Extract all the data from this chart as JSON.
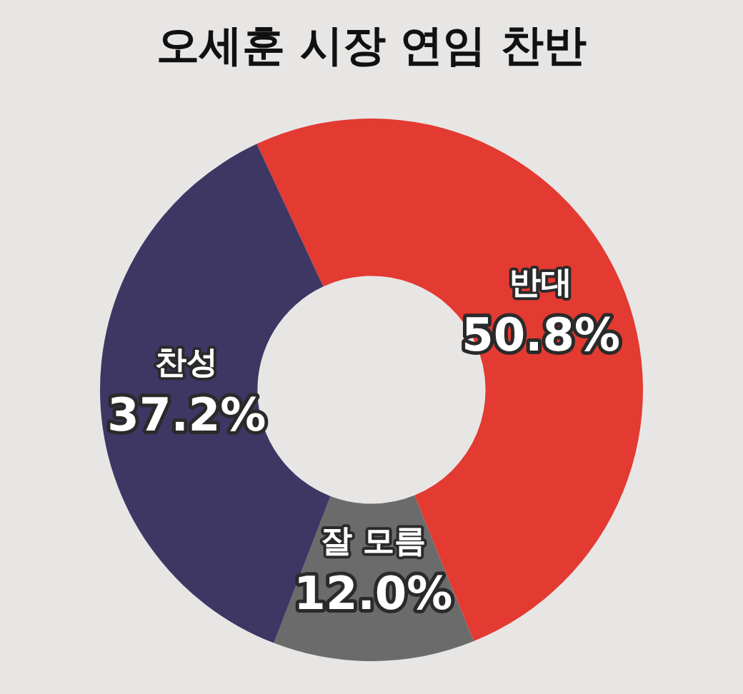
{
  "chart_data": {
    "type": "donut",
    "title": "오세훈 시장 연임 찬반",
    "categories": [
      "반대",
      "잘 모름",
      "찬성"
    ],
    "values": [
      50.8,
      12.0,
      37.2
    ],
    "colors": [
      "#e33a32",
      "#6b6b6b",
      "#3e3764"
    ],
    "value_labels": [
      "50.8%",
      "12.0%",
      "37.2%"
    ],
    "legend": false
  }
}
